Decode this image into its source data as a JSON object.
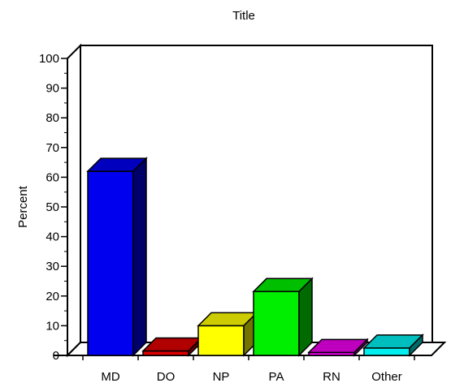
{
  "chart_data": {
    "type": "bar",
    "title": "Title",
    "xlabel": "",
    "ylabel": "Percent",
    "ylim": [
      0,
      100
    ],
    "yticks": [
      0,
      10,
      20,
      30,
      40,
      50,
      60,
      70,
      80,
      90,
      100
    ],
    "categories": [
      "MD",
      "DO",
      "NP",
      "PA",
      "RN",
      "Other"
    ],
    "values": [
      62,
      1.5,
      10,
      21.5,
      1,
      2.5
    ],
    "colors": [
      "#0000ee",
      "#dd0000",
      "#ffff00",
      "#00ee00",
      "#ee00ee",
      "#00eeee"
    ],
    "grid": false,
    "legend": "none",
    "style": "3d"
  }
}
